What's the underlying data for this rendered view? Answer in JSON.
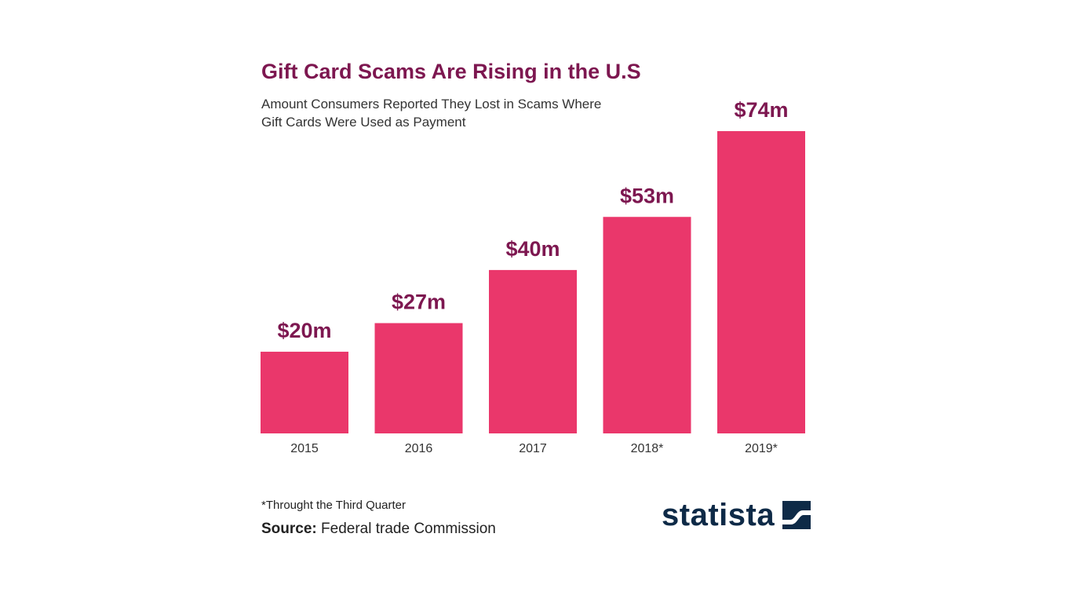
{
  "title": "Gift Card Scams Are Rising in the U.S",
  "subtitle_lines": [
    "Amount Consumers Reported They Lost in Scams Where",
    "Gift Cards Were Used as Payment"
  ],
  "footnote": "*Throught the Third Quarter",
  "source_label": "Source:",
  "source_text": "Federal trade Commission",
  "brand": "statista",
  "colors": {
    "bar": "#ea376b",
    "title": "#7d1750",
    "logo": "#0e2a47"
  },
  "chart_data": {
    "type": "bar",
    "categories": [
      "2015",
      "2016",
      "2017",
      "2018*",
      "2019*"
    ],
    "values": [
      20,
      27,
      40,
      53,
      74
    ],
    "value_labels": [
      "$20m",
      "$27m",
      "$40m",
      "$53m",
      "$74m"
    ],
    "title": "Gift Card Scams Are Rising in the U.S",
    "xlabel": "",
    "ylabel": "",
    "grid": false,
    "legend": "none"
  }
}
